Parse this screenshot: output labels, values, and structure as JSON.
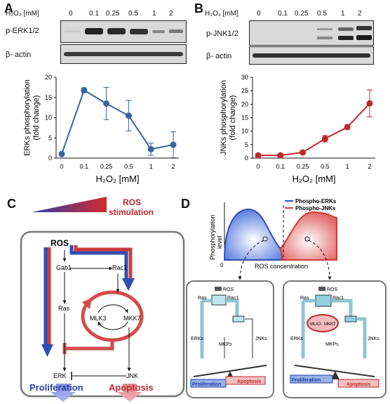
{
  "panels": {
    "A": {
      "letter": "A",
      "conc_header": "H₂O₂ [mM]",
      "conc_labels": [
        "0",
        "0.1",
        "0.25",
        "0.5",
        "1",
        "2"
      ],
      "blot_labels": [
        "p-ERK1/2",
        "β- actin"
      ],
      "ylabel_1": "ERKs phosphorylation",
      "ylabel_2": "(fold change)",
      "xlabel": "H₂O₂ [mM]"
    },
    "B": {
      "letter": "B",
      "conc_header": "H₂O₂ [mM]",
      "conc_labels": [
        "0",
        "0.1",
        "0.25",
        "0.5",
        "1",
        "2"
      ],
      "blot_labels": [
        "p-JNK1/2",
        "β- actin"
      ],
      "ylabel_1": "JNKs phosphorylation",
      "ylabel_2": "(fold change)",
      "xlabel": "H₂O₂ [mM]"
    },
    "C": {
      "letter": "C",
      "ros_stimulation_1": "ROS",
      "ros_stimulation_2": "stimulation",
      "nodes": {
        "ros": "ROS",
        "gab1": "Gab1",
        "rac1": "Rac1",
        "ras": "Ras",
        "mlk3": "MLK3",
        "mkk7": "MKK7",
        "erk": "ERK",
        "jnk": "JNK"
      },
      "proliferation": "Proliferation",
      "apoptosis": "Apoptosis"
    },
    "D": {
      "letter": "D",
      "legend": [
        "Phospho-ERKs",
        "Phospho-JNKs"
      ],
      "ylabel_1": "Phosphorylation",
      "ylabel_2": "level",
      "xlabel": "ROS concentration",
      "origin": "0",
      "box_labels": {
        "ros": "ROS",
        "ras": "Ras",
        "rac1": "Rac1",
        "erks": "ERKs",
        "jnks": "JNKs",
        "mkps": "MKPs",
        "mlk3": "MLK3",
        "mkk7": "MKK7"
      },
      "proliferation": "Proliferation",
      "apoptosis": "Apoptosis"
    }
  },
  "colors": {
    "erk": "#3a63a3",
    "jnk": "#c0272d",
    "blue": "#2f4fb0",
    "red": "#cf3a3a"
  },
  "chart_data": [
    {
      "type": "line",
      "categories": [
        "0",
        "0.1",
        "0.25",
        "0.5",
        "1",
        "2"
      ],
      "series": [
        {
          "values": [
            1.0,
            16.8,
            13.5,
            10.5,
            2.2,
            3.3
          ],
          "errors": [
            0.3,
            0.6,
            4.0,
            3.8,
            1.5,
            3.2
          ]
        }
      ],
      "xlabel": "H₂O₂ [mM]",
      "ylabel": "ERKs phosphorylation (fold change)",
      "ylim": [
        0,
        20
      ],
      "yticks": [
        0,
        5,
        10,
        15,
        20
      ]
    },
    {
      "type": "line",
      "categories": [
        "0",
        "0.1",
        "0.25",
        "0.5",
        "1",
        "2"
      ],
      "series": [
        {
          "values": [
            1.0,
            1.0,
            2.1,
            7.2,
            11.5,
            20.3
          ],
          "errors": [
            0.5,
            0.6,
            0.6,
            1.2,
            0.8,
            5.0
          ]
        }
      ],
      "xlabel": "H₂O₂ [mM]",
      "ylabel": "JNKs phosphorylation (fold change)",
      "ylim": [
        0,
        30
      ],
      "yticks": [
        0,
        5,
        10,
        15,
        20,
        25,
        30
      ]
    }
  ]
}
